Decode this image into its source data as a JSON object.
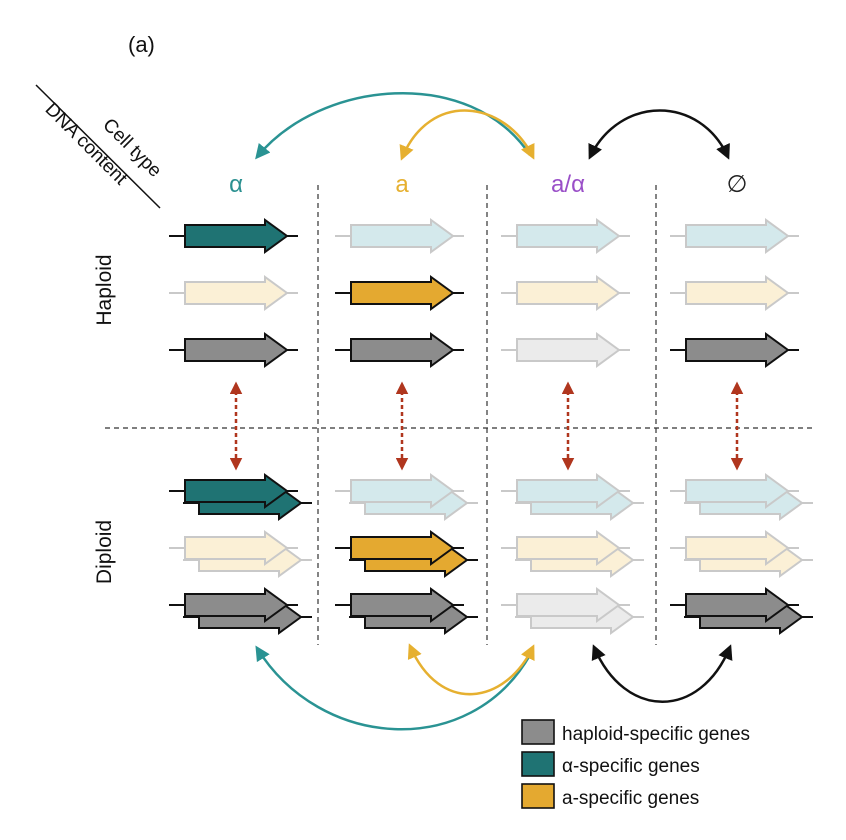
{
  "panel_label": "(a)",
  "header": {
    "corner_top": "Cell type",
    "corner_bottom": "DNA content"
  },
  "columns": [
    {
      "id": "alpha",
      "label": "α",
      "color": "#2a9090"
    },
    {
      "id": "a",
      "label": "a",
      "color": "#e6b030"
    },
    {
      "id": "a_alpha",
      "label": "a/α",
      "color": "#9a4fc8"
    },
    {
      "id": "null",
      "label": "∅",
      "color": "#222222"
    }
  ],
  "rows": [
    {
      "id": "haploid",
      "label": "Haploid"
    },
    {
      "id": "diploid",
      "label": "Diploid"
    }
  ],
  "gene_types": [
    "alpha_specific",
    "a_specific",
    "haploid_specific"
  ],
  "expression": {
    "alpha": {
      "alpha_specific": true,
      "a_specific": false,
      "haploid_specific": true
    },
    "a": {
      "alpha_specific": false,
      "a_specific": true,
      "haploid_specific": true
    },
    "a_alpha": {
      "alpha_specific": false,
      "a_specific": false,
      "haploid_specific": false
    },
    "null": {
      "alpha_specific": false,
      "a_specific": false,
      "haploid_specific": true
    }
  },
  "colors": {
    "alpha_specific": "#1f7373",
    "a_specific": "#e4a930",
    "haploid_specific": "#8c8c8c",
    "alpha_faded": "#d4e9ec",
    "a_faded": "#fbf0d6",
    "haploid_faded": "#ebebeb",
    "teal_arrow": "#2a9393",
    "gold_arrow": "#e6b030",
    "black_arrow": "#111111",
    "red_arrow": "#b0361e"
  },
  "legend": [
    {
      "key": "haploid_specific",
      "label": "haploid-specific genes",
      "color": "#8c8c8c"
    },
    {
      "key": "alpha_specific",
      "label": "α-specific genes",
      "color": "#1f7373"
    },
    {
      "key": "a_specific",
      "label": "a-specific genes",
      "color": "#e4a930"
    }
  ]
}
